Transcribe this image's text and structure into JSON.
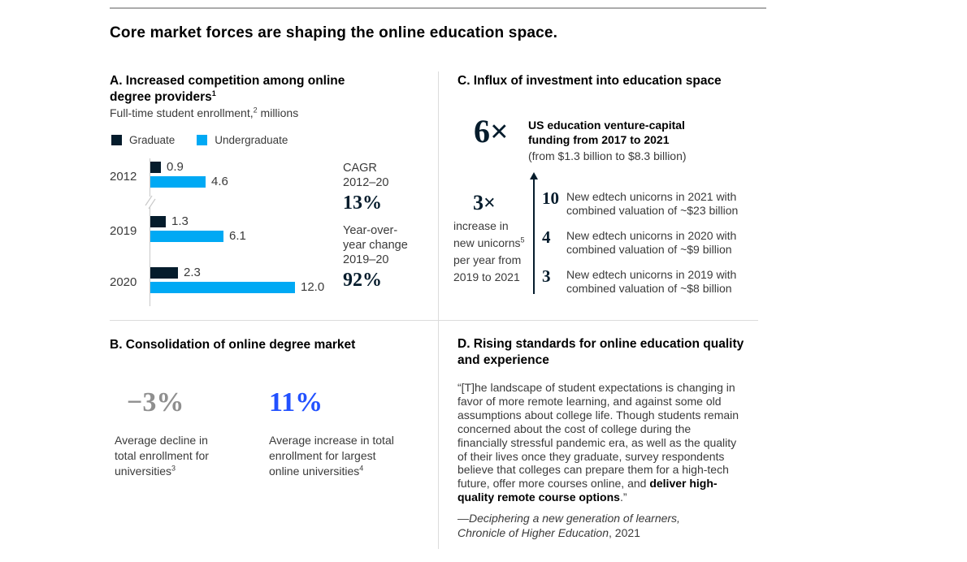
{
  "title": "Core market forces are shaping the online education space.",
  "colors": {
    "navy": "#051c2c",
    "cyan": "#00a9f4",
    "electric_blue": "#2251ff",
    "stat_gray": "#8f8f8f",
    "divider": "#dcdcdc",
    "top_rule": "#ababab",
    "axis": "#c9c9c9",
    "body_text": "#3a3a3a"
  },
  "chart_data": [
    {
      "type": "bar",
      "orientation": "horizontal",
      "title": "A. Increased competition among online degree providers",
      "subtitle": "Full-time student enrollment, millions",
      "categories": [
        "2012",
        "2019",
        "2020"
      ],
      "series": [
        {
          "name": "Graduate",
          "color": "#051c2c",
          "values": [
            0.9,
            1.3,
            2.3
          ],
          "labels": [
            "0.9",
            "1.3",
            "2.3"
          ]
        },
        {
          "name": "Undergraduate",
          "color": "#00a9f4",
          "values": [
            4.6,
            6.1,
            12.0
          ],
          "labels": [
            "4.6",
            "6.1",
            "12.0"
          ]
        }
      ],
      "xlim": [
        0,
        13
      ],
      "axis_break_between": [
        "2012",
        "2019"
      ],
      "grid": false,
      "legend_position": "top",
      "annotations": [
        {
          "label": "CAGR 2012–20",
          "value": "13%"
        },
        {
          "label": "Year-over-year change 2019–20",
          "value": "92%"
        }
      ]
    },
    {
      "type": "table",
      "title": "C. Influx of investment into education space — new edtech unicorns",
      "categories": [
        "2021",
        "2020",
        "2019"
      ],
      "values": [
        10,
        4,
        3
      ],
      "combined_valuations": [
        "~$23 billion",
        "~$9 billion",
        "~$8 billion"
      ],
      "highlights": [
        "6× US education venture-capital funding from 2017 to 2021 (from $1.3 billion to $8.3 billion)",
        "3× increase in new unicorns per year from 2019 to 2021"
      ]
    },
    {
      "type": "table",
      "title": "B. Consolidation of online degree market",
      "categories": [
        "Average decline in total enrollment for universities",
        "Average increase in total enrollment for largest online universities"
      ],
      "values": [
        "−3%",
        "11%"
      ]
    }
  ],
  "panel_a": {
    "heading": "A. Increased competition among online degree providers",
    "heading_sup": "1",
    "subtitle_pre": "Full-time student enrollment,",
    "subtitle_sup": "2",
    "subtitle_post": " millions",
    "cagr_label_lines": [
      "CAGR",
      "2012–20"
    ],
    "cagr_value": "13%",
    "yoy_label_lines": [
      "Year-over-",
      "year change",
      "2019–20"
    ],
    "yoy_value": "92%"
  },
  "panel_b": {
    "heading": "B. Consolidation of online degree market",
    "stats": [
      {
        "value": "−3%",
        "label": "Average decline in total enrollment for universities",
        "sup": "3"
      },
      {
        "value": "11%",
        "label": "Average increase in total enrollment for largest online universities",
        "sup": "4"
      }
    ]
  },
  "panel_c": {
    "heading": "C. Influx of investment into education space",
    "vc_multiple": "6×",
    "vc_lines": [
      "US education venture-capital",
      "funding from 2017 to 2021"
    ],
    "vc_detail": "(from $1.3 billion to $8.3 billion)",
    "unicorn_multiple": "3×",
    "unicorn_line1": "increase in",
    "unicorn_line2_pre": "new unicorns",
    "unicorn_line2_sup": "5",
    "unicorn_line3": "per year from",
    "unicorn_line4": "2019 to 2021",
    "items": [
      {
        "count": "10",
        "text": "New edtech unicorns in 2021 with combined valuation of ~$23 billion"
      },
      {
        "count": "4",
        "text": "New edtech unicorns in 2020 with combined valuation of ~$9 billion"
      },
      {
        "count": "3",
        "text": "New edtech unicorns in 2019 with combined valuation of ~$8 billion"
      }
    ]
  },
  "panel_d": {
    "heading": "D. Rising standards for online education quality and experience",
    "quote_main": "“[T]he landscape of student expectations is changing in favor of more remote learning, and against some old assumptions about college life. Though students remain concerned about the cost of college during the financially stressful pandemic era, as well as the quality of their lives once they graduate, survey respondents believe that colleges can prepare them for a high-tech future, offer more courses online, and ",
    "quote_bold": "deliver high-quality remote course options",
    "quote_close": ".”",
    "attribution_line1": "—Deciphering a new generation of learners,",
    "attribution_work": "Chronicle of Higher Education",
    "attribution_year": ", 2021"
  }
}
